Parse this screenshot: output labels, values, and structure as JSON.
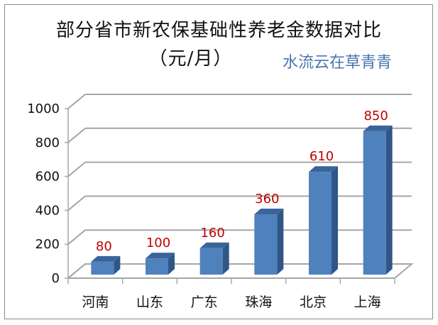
{
  "chart_data": {
    "type": "bar",
    "title": "部分省市新农保基础性养老金数据对比",
    "subtitle": "（元/月）",
    "watermark": "水流云在草青青",
    "categories": [
      "河南",
      "山东",
      "广东",
      "珠海",
      "北京",
      "上海"
    ],
    "values": [
      80,
      100,
      160,
      360,
      610,
      850
    ],
    "data_labels": [
      "80",
      "100",
      "160",
      "360",
      "610",
      "850"
    ],
    "xlabel": "",
    "ylabel": "",
    "ylim": [
      0,
      1000
    ],
    "yticks": [
      "0",
      "200",
      "400",
      "600",
      "800",
      "1000"
    ],
    "grid": true,
    "legend": "none",
    "style": "3d-column",
    "colors": {
      "bar_front": "#4f81bd",
      "bar_side": "#2f5687",
      "bar_top": "#3a649b",
      "label": "#c00000"
    }
  }
}
